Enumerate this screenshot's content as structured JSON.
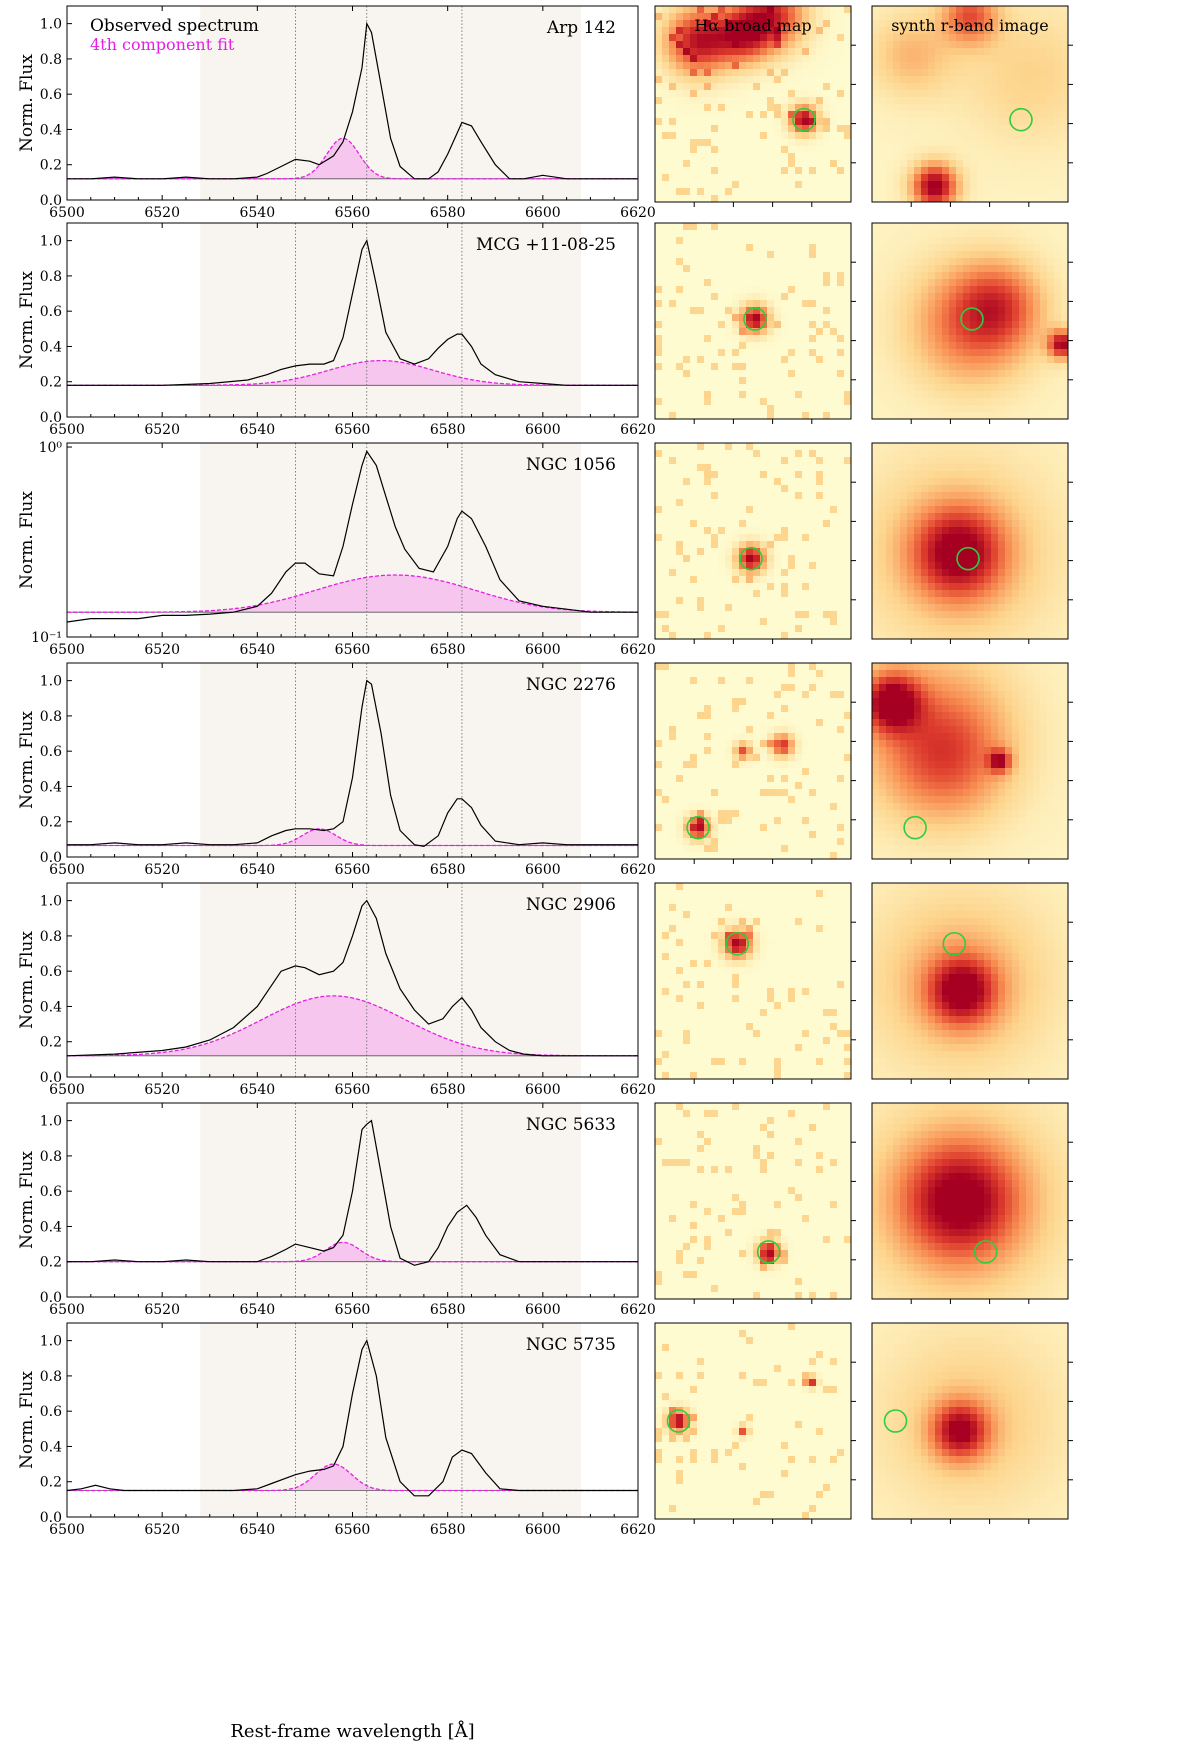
{
  "figure": {
    "xlabel": "Rest-frame wavelength [Å]",
    "ylabel": "Norm. Flux",
    "legend": {
      "observed": "Observed spectrum",
      "fit": "4th component fit"
    },
    "map_titles": {
      "halpha": "Hα broad map",
      "rband": "synth r-band image"
    },
    "x_ticks": [
      6500,
      6520,
      6540,
      6560,
      6580,
      6600,
      6620
    ],
    "shaded_region": [
      6528,
      6608
    ],
    "line_markers": [
      6548,
      6563,
      6583
    ],
    "colors": {
      "observed": "#000000",
      "fit": "#e61ee6",
      "fit_fill": "#f6c6ee",
      "shade": "#f8f4ef",
      "circle": "#2ecc40",
      "map_low": "#fefbd0",
      "map_high": "#a50021"
    }
  },
  "chart_data": [
    {
      "type": "line",
      "galaxy": "Arp 142",
      "yscale": "linear",
      "xlim": [
        6500,
        6620
      ],
      "ylim": [
        0,
        1.1
      ],
      "yticks": [
        0.0,
        0.2,
        0.4,
        0.6,
        0.8,
        1.0
      ],
      "observed": {
        "x": [
          6500,
          6505,
          6510,
          6515,
          6520,
          6525,
          6530,
          6535,
          6540,
          6542,
          6545,
          6548,
          6551,
          6553,
          6556,
          6558,
          6560,
          6562,
          6563,
          6564,
          6566,
          6568,
          6570,
          6573,
          6576,
          6578,
          6580,
          6582,
          6583,
          6585,
          6587,
          6590,
          6593,
          6596,
          6600,
          6605,
          6610,
          6620
        ],
        "y": [
          0.12,
          0.12,
          0.13,
          0.12,
          0.12,
          0.13,
          0.12,
          0.12,
          0.13,
          0.15,
          0.19,
          0.23,
          0.22,
          0.2,
          0.25,
          0.33,
          0.5,
          0.75,
          1.0,
          0.95,
          0.65,
          0.35,
          0.19,
          0.12,
          0.12,
          0.16,
          0.26,
          0.38,
          0.44,
          0.42,
          0.33,
          0.2,
          0.12,
          0.12,
          0.14,
          0.12,
          0.12,
          0.12
        ]
      },
      "fit": {
        "baseline": 0.12,
        "amplitude": 0.23,
        "center": 6558,
        "sigma": 3.4
      }
    },
    {
      "type": "line",
      "galaxy": "MCG +11-08-25",
      "yscale": "linear",
      "xlim": [
        6500,
        6620
      ],
      "ylim": [
        0,
        1.1
      ],
      "yticks": [
        0.0,
        0.2,
        0.4,
        0.6,
        0.8,
        1.0
      ],
      "observed": {
        "x": [
          6500,
          6510,
          6520,
          6530,
          6538,
          6542,
          6545,
          6548,
          6551,
          6554,
          6556,
          6558,
          6560,
          6562,
          6563,
          6565,
          6567,
          6570,
          6573,
          6576,
          6578,
          6580,
          6582,
          6583,
          6585,
          6587,
          6590,
          6595,
          6600,
          6605,
          6610,
          6620
        ],
        "y": [
          0.18,
          0.18,
          0.18,
          0.19,
          0.21,
          0.24,
          0.27,
          0.29,
          0.3,
          0.3,
          0.32,
          0.45,
          0.7,
          0.95,
          1.0,
          0.75,
          0.48,
          0.33,
          0.3,
          0.33,
          0.39,
          0.44,
          0.47,
          0.47,
          0.4,
          0.3,
          0.24,
          0.2,
          0.19,
          0.18,
          0.18,
          0.18
        ]
      },
      "fit": {
        "baseline": 0.18,
        "amplitude": 0.14,
        "center": 6566,
        "sigma": 11
      }
    },
    {
      "type": "line",
      "galaxy": "NGC 1056",
      "yscale": "log",
      "xlim": [
        6500,
        6620
      ],
      "ylim": [
        0.1,
        1.05
      ],
      "yticks": [
        0.1,
        1.0
      ],
      "yticklabels": [
        "10⁻¹",
        "10⁰"
      ],
      "observed": {
        "x": [
          6500,
          6505,
          6510,
          6515,
          6520,
          6525,
          6530,
          6535,
          6540,
          6543,
          6546,
          6548,
          6550,
          6553,
          6556,
          6558,
          6560,
          6562,
          6563,
          6565,
          6567,
          6569,
          6571,
          6574,
          6577,
          6580,
          6582,
          6583,
          6585,
          6588,
          6591,
          6595,
          6600,
          6605,
          6610,
          6620
        ],
        "y": [
          0.12,
          0.125,
          0.125,
          0.125,
          0.13,
          0.13,
          0.132,
          0.135,
          0.145,
          0.17,
          0.22,
          0.245,
          0.245,
          0.215,
          0.21,
          0.3,
          0.5,
          0.8,
          0.95,
          0.8,
          0.55,
          0.38,
          0.29,
          0.23,
          0.22,
          0.3,
          0.42,
          0.46,
          0.42,
          0.3,
          0.2,
          0.155,
          0.145,
          0.14,
          0.135,
          0.135
        ]
      },
      "fit": {
        "baseline": 0.135,
        "amplitude": 0.077,
        "center": 6569,
        "sigma": 15
      }
    },
    {
      "type": "line",
      "galaxy": "NGC 2276",
      "yscale": "linear",
      "xlim": [
        6500,
        6620
      ],
      "ylim": [
        0,
        1.1
      ],
      "yticks": [
        0.0,
        0.2,
        0.4,
        0.6,
        0.8,
        1.0
      ],
      "observed": {
        "x": [
          6500,
          6505,
          6510,
          6515,
          6520,
          6525,
          6530,
          6535,
          6540,
          6543,
          6546,
          6548,
          6551,
          6554,
          6556,
          6558,
          6560,
          6562,
          6563,
          6564,
          6566,
          6568,
          6570,
          6573,
          6575,
          6578,
          6580,
          6582,
          6583,
          6585,
          6587,
          6590,
          6595,
          6600,
          6605,
          6610,
          6620
        ],
        "y": [
          0.07,
          0.07,
          0.08,
          0.07,
          0.07,
          0.08,
          0.07,
          0.07,
          0.08,
          0.12,
          0.15,
          0.16,
          0.16,
          0.15,
          0.16,
          0.2,
          0.45,
          0.85,
          1.0,
          0.98,
          0.7,
          0.35,
          0.15,
          0.07,
          0.06,
          0.12,
          0.25,
          0.33,
          0.33,
          0.28,
          0.18,
          0.09,
          0.07,
          0.08,
          0.07,
          0.07,
          0.07
        ]
      },
      "fit": {
        "baseline": 0.065,
        "amplitude": 0.095,
        "center": 6553,
        "sigma": 3.5
      }
    },
    {
      "type": "line",
      "galaxy": "NGC 2906",
      "yscale": "linear",
      "xlim": [
        6500,
        6620
      ],
      "ylim": [
        0,
        1.1
      ],
      "yticks": [
        0.0,
        0.2,
        0.4,
        0.6,
        0.8,
        1.0
      ],
      "observed": {
        "x": [
          6500,
          6510,
          6520,
          6525,
          6530,
          6535,
          6540,
          6543,
          6545,
          6548,
          6550,
          6553,
          6556,
          6558,
          6560,
          6562,
          6563,
          6565,
          6567,
          6570,
          6573,
          6576,
          6579,
          6581,
          6583,
          6585,
          6587,
          6590,
          6593,
          6596,
          6600,
          6610,
          6620
        ],
        "y": [
          0.12,
          0.13,
          0.15,
          0.17,
          0.21,
          0.28,
          0.4,
          0.52,
          0.6,
          0.63,
          0.62,
          0.58,
          0.6,
          0.65,
          0.8,
          0.97,
          1.0,
          0.9,
          0.7,
          0.5,
          0.38,
          0.3,
          0.33,
          0.4,
          0.45,
          0.38,
          0.28,
          0.2,
          0.15,
          0.13,
          0.12,
          0.12,
          0.12
        ]
      },
      "fit": {
        "baseline": 0.12,
        "amplitude": 0.34,
        "center": 6556,
        "sigma": 15
      }
    },
    {
      "type": "line",
      "galaxy": "NGC 5633",
      "yscale": "linear",
      "xlim": [
        6500,
        6620
      ],
      "ylim": [
        0,
        1.1
      ],
      "yticks": [
        0.0,
        0.2,
        0.4,
        0.6,
        0.8,
        1.0
      ],
      "observed": {
        "x": [
          6500,
          6505,
          6510,
          6515,
          6520,
          6525,
          6530,
          6535,
          6540,
          6543,
          6546,
          6548,
          6551,
          6554,
          6556,
          6558,
          6560,
          6562,
          6563,
          6564,
          6566,
          6568,
          6570,
          6573,
          6576,
          6578,
          6580,
          6582,
          6584,
          6586,
          6588,
          6591,
          6595,
          6600,
          6605,
          6610,
          6620
        ],
        "y": [
          0.2,
          0.2,
          0.21,
          0.2,
          0.2,
          0.21,
          0.2,
          0.2,
          0.2,
          0.23,
          0.27,
          0.3,
          0.28,
          0.26,
          0.28,
          0.35,
          0.6,
          0.95,
          0.98,
          1.0,
          0.7,
          0.4,
          0.22,
          0.18,
          0.2,
          0.28,
          0.4,
          0.48,
          0.52,
          0.45,
          0.35,
          0.24,
          0.2,
          0.2,
          0.2,
          0.2,
          0.2
        ]
      },
      "fit": {
        "baseline": 0.2,
        "amplitude": 0.11,
        "center": 6558,
        "sigma": 3.6
      }
    },
    {
      "type": "line",
      "galaxy": "NGC 5735",
      "yscale": "linear",
      "xlim": [
        6500,
        6620
      ],
      "ylim": [
        0,
        1.1
      ],
      "yticks": [
        0.0,
        0.2,
        0.4,
        0.6,
        0.8,
        1.0
      ],
      "observed": {
        "x": [
          6500,
          6503,
          6506,
          6509,
          6512,
          6516,
          6520,
          6525,
          6530,
          6535,
          6540,
          6543,
          6546,
          6548,
          6551,
          6554,
          6556,
          6558,
          6560,
          6562,
          6563,
          6565,
          6567,
          6570,
          6573,
          6576,
          6579,
          6581,
          6583,
          6585,
          6588,
          6591,
          6595,
          6600,
          6605,
          6610,
          6620
        ],
        "y": [
          0.15,
          0.16,
          0.18,
          0.16,
          0.15,
          0.15,
          0.15,
          0.15,
          0.15,
          0.15,
          0.16,
          0.19,
          0.22,
          0.24,
          0.26,
          0.27,
          0.29,
          0.4,
          0.7,
          0.95,
          1.0,
          0.8,
          0.45,
          0.2,
          0.12,
          0.12,
          0.2,
          0.34,
          0.38,
          0.36,
          0.25,
          0.16,
          0.15,
          0.15,
          0.15,
          0.15,
          0.15
        ]
      },
      "fit": {
        "baseline": 0.15,
        "amplitude": 0.15,
        "center": 6556,
        "sigma": 3.8
      }
    }
  ],
  "maps": [
    {
      "galaxy": "Arp 142",
      "halpha_circle": [
        0.76,
        0.58
      ],
      "rband_circle": [
        0.76,
        0.58
      ],
      "halpha_blobs": [
        [
          0.76,
          0.58,
          0.05,
          1.0
        ],
        [
          0.22,
          0.18,
          0.12,
          0.9
        ],
        [
          0.45,
          0.15,
          0.1,
          0.7
        ],
        [
          0.6,
          0.05,
          0.12,
          0.8
        ]
      ],
      "rband_blobs": [
        [
          0.32,
          0.92,
          0.08,
          1.0
        ],
        [
          0.5,
          0.05,
          0.1,
          0.6
        ],
        [
          0.2,
          0.25,
          0.15,
          0.3
        ],
        [
          0.8,
          0.35,
          0.25,
          0.2
        ]
      ]
    },
    {
      "galaxy": "MCG +11-08-25",
      "halpha_circle": [
        0.51,
        0.49
      ],
      "rband_circle": [
        0.51,
        0.49
      ],
      "halpha_blobs": [
        [
          0.51,
          0.49,
          0.05,
          1.0
        ]
      ],
      "rband_blobs": [
        [
          0.5,
          0.52,
          0.22,
          0.55
        ],
        [
          0.97,
          0.62,
          0.05,
          0.9
        ],
        [
          0.65,
          0.42,
          0.15,
          0.45
        ]
      ]
    },
    {
      "galaxy": "NGC 1056",
      "halpha_circle": [
        0.49,
        0.59
      ],
      "rband_circle": [
        0.49,
        0.59
      ],
      "halpha_blobs": [
        [
          0.49,
          0.59,
          0.05,
          1.0
        ]
      ],
      "rband_blobs": [
        [
          0.44,
          0.56,
          0.16,
          0.8
        ],
        [
          0.44,
          0.56,
          0.35,
          0.3
        ]
      ]
    },
    {
      "galaxy": "NGC 2276",
      "halpha_circle": [
        0.22,
        0.84
      ],
      "rband_circle": [
        0.22,
        0.84
      ],
      "halpha_blobs": [
        [
          0.22,
          0.84,
          0.04,
          1.0
        ],
        [
          0.65,
          0.42,
          0.04,
          0.8
        ],
        [
          0.45,
          0.45,
          0.03,
          0.7
        ]
      ],
      "rband_blobs": [
        [
          0.1,
          0.2,
          0.1,
          0.9
        ],
        [
          0.38,
          0.5,
          0.22,
          0.45
        ],
        [
          0.65,
          0.5,
          0.04,
          0.7
        ],
        [
          0.3,
          0.3,
          0.3,
          0.35
        ]
      ]
    },
    {
      "galaxy": "NGC 2906",
      "halpha_circle": [
        0.42,
        0.31
      ],
      "rband_circle": [
        0.42,
        0.31
      ],
      "halpha_blobs": [
        [
          0.42,
          0.31,
          0.05,
          1.0
        ]
      ],
      "rband_blobs": [
        [
          0.46,
          0.55,
          0.12,
          0.8
        ],
        [
          0.45,
          0.5,
          0.32,
          0.35
        ]
      ]
    },
    {
      "galaxy": "NGC 5633",
      "halpha_circle": [
        0.58,
        0.76
      ],
      "rband_circle": [
        0.58,
        0.76
      ],
      "halpha_blobs": [
        [
          0.58,
          0.76,
          0.04,
          1.0
        ]
      ],
      "rband_blobs": [
        [
          0.45,
          0.5,
          0.2,
          0.75
        ],
        [
          0.45,
          0.5,
          0.36,
          0.35
        ]
      ]
    },
    {
      "galaxy": "NGC 5735",
      "halpha_circle": [
        0.12,
        0.5
      ],
      "rband_circle": [
        0.12,
        0.5
      ],
      "halpha_blobs": [
        [
          0.12,
          0.5,
          0.04,
          1.0
        ],
        [
          0.8,
          0.3,
          0.02,
          0.8
        ],
        [
          0.45,
          0.55,
          0.02,
          0.7
        ]
      ],
      "rband_blobs": [
        [
          0.45,
          0.55,
          0.1,
          0.8
        ],
        [
          0.5,
          0.5,
          0.33,
          0.25
        ]
      ]
    }
  ]
}
